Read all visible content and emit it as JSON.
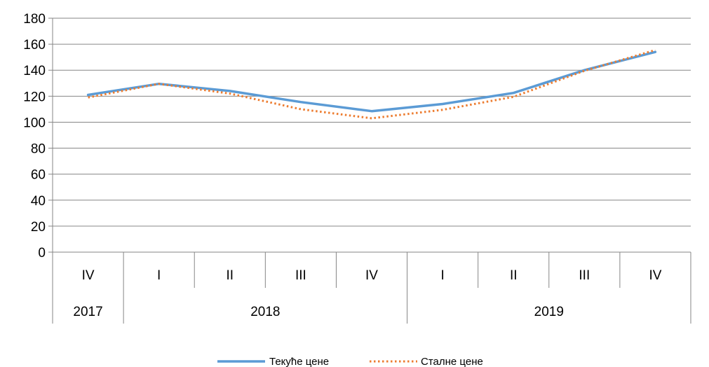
{
  "chart_data": {
    "type": "line",
    "ylim": [
      0,
      180
    ],
    "yticks": [
      "0",
      "20",
      "40",
      "60",
      "80",
      "100",
      "120",
      "140",
      "160",
      "180"
    ],
    "categories": [
      "IV",
      "I",
      "II",
      "III",
      "IV",
      "I",
      "II",
      "III",
      "IV"
    ],
    "year_groups": [
      {
        "label": "2017",
        "span": 1
      },
      {
        "label": "2018",
        "span": 4
      },
      {
        "label": "2019",
        "span": 4
      }
    ],
    "series": [
      {
        "name": "Текуће цене",
        "color": "#5b9bd5",
        "style": "solid",
        "values": [
          121,
          129.5,
          124,
          115.5,
          108.5,
          114,
          122.5,
          140,
          154
        ]
      },
      {
        "name": "Сталне цене",
        "color": "#ed7d31",
        "style": "dotted",
        "values": [
          119,
          129.5,
          122,
          110,
          103,
          109.5,
          119.5,
          139.5,
          155.5
        ]
      }
    ],
    "grid": true,
    "legend": "bottom"
  }
}
